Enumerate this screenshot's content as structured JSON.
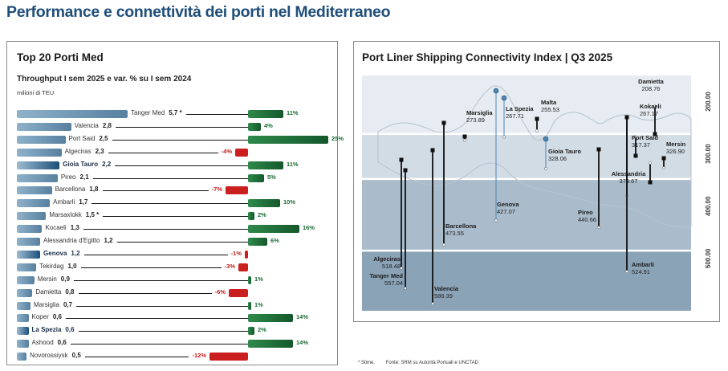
{
  "page": {
    "title": "Performance e connettività dei porti nel Mediterraneo",
    "footnote_star": "* Stime.",
    "source": "Fonte: SRM su Autorità Portuali e UNCTAD"
  },
  "left": {
    "title": "Top 20 Porti Med",
    "subtitle": "Throughput I sem 2025 e var. % su I sem 2024",
    "unit": "milioni di TEU"
  },
  "right": {
    "title": "Port Liner Shipping Connectivity Index | Q3 2025"
  },
  "chart_data": [
    {
      "type": "bar",
      "title": "Top 20 Porti Med",
      "subtitle": "Throughput I sem 2025 e var. % su I sem 2024",
      "unit": "milioni di TEU",
      "series": [
        {
          "name": "Throughput I sem 2025 (milioni di TEU)"
        },
        {
          "name": "Var. % su I sem 2024"
        }
      ],
      "rows": [
        {
          "port": "Tanger Med",
          "value": 5.7,
          "value_label": "5,7 *",
          "change": 11,
          "change_label": "11%",
          "highlight": false
        },
        {
          "port": "Valencia",
          "value": 2.8,
          "value_label": "2,8",
          "change": 4,
          "change_label": "4%",
          "highlight": false
        },
        {
          "port": "Port Said",
          "value": 2.5,
          "value_label": "2,5",
          "change": 25,
          "change_label": "25%",
          "highlight": false
        },
        {
          "port": "Algeciras",
          "value": 2.3,
          "value_label": "2,3",
          "change": -4,
          "change_label": "-4%",
          "highlight": false
        },
        {
          "port": "Gioia Tauro",
          "value": 2.2,
          "value_label": "2,2",
          "change": 11,
          "change_label": "11%",
          "highlight": true
        },
        {
          "port": "Pireo",
          "value": 2.1,
          "value_label": "2,1",
          "change": 5,
          "change_label": "5%",
          "highlight": false
        },
        {
          "port": "Barcellona",
          "value": 1.8,
          "value_label": "1,8",
          "change": -7,
          "change_label": "-7%",
          "highlight": false
        },
        {
          "port": "Ambarli",
          "value": 1.7,
          "value_label": "1,7",
          "change": 10,
          "change_label": "10%",
          "highlight": false
        },
        {
          "port": "Marsaxlokk",
          "value": 1.5,
          "value_label": "1,5 *",
          "change": 2,
          "change_label": "2%",
          "highlight": false
        },
        {
          "port": "Kocaeli",
          "value": 1.3,
          "value_label": "1,3",
          "change": 16,
          "change_label": "16%",
          "highlight": false
        },
        {
          "port": "Alessandria d'Egitto",
          "value": 1.2,
          "value_label": "1,2",
          "change": 6,
          "change_label": "6%",
          "highlight": false
        },
        {
          "port": "Genova",
          "value": 1.2,
          "value_label": "1,2",
          "change": -1,
          "change_label": "-1%",
          "highlight": true
        },
        {
          "port": "Tekirdag",
          "value": 1.0,
          "value_label": "1,0",
          "change": -3,
          "change_label": "-3%",
          "highlight": false
        },
        {
          "port": "Mersin",
          "value": 0.9,
          "value_label": "0,9",
          "change": 1,
          "change_label": "1%",
          "highlight": false
        },
        {
          "port": "Damietta",
          "value": 0.8,
          "value_label": "0,8",
          "change": -6,
          "change_label": "-6%",
          "highlight": false
        },
        {
          "port": "Marsiglia",
          "value": 0.7,
          "value_label": "0,7",
          "change": 1,
          "change_label": "1%",
          "highlight": false
        },
        {
          "port": "Koper",
          "value": 0.6,
          "value_label": "0,6",
          "change": 14,
          "change_label": "14%",
          "highlight": false
        },
        {
          "port": "La Spezia",
          "value": 0.6,
          "value_label": "0,6",
          "change": 2,
          "change_label": "2%",
          "highlight": true
        },
        {
          "port": "Ashood",
          "value": 0.6,
          "value_label": "0,6",
          "change": 14,
          "change_label": "14%",
          "highlight": false
        },
        {
          "port": "Novorossiysk",
          "value": 0.5,
          "value_label": "0,5",
          "change": -12,
          "change_label": "-12%",
          "highlight": false
        }
      ]
    },
    {
      "type": "scatter",
      "title": "Port Liner Shipping Connectivity Index | Q3 2025",
      "ylabel": "",
      "ylim": [
        150,
        600
      ],
      "y_inverted": true,
      "yticks": [
        200,
        300,
        400,
        500
      ],
      "ytick_labels": [
        "200.00",
        "300.00",
        "400.00",
        "500.00"
      ],
      "points": [
        {
          "name": "Damietta",
          "value": 208.76,
          "label": "208.76",
          "highlight": false
        },
        {
          "name": "Kokaeli",
          "value": 267.17,
          "label": "267.17",
          "highlight": false
        },
        {
          "name": "Marsiglia",
          "value": 273.89,
          "label": "273.89",
          "highlight": false
        },
        {
          "name": "La Spezia",
          "value": 267.71,
          "label": "267.71",
          "highlight": true
        },
        {
          "name": "Malta",
          "value": 255.53,
          "label": "255.53",
          "highlight": false
        },
        {
          "name": "Port Said",
          "value": 317.37,
          "label": "317.37",
          "highlight": false
        },
        {
          "name": "Mersin",
          "value": 326.9,
          "label": "326.90",
          "highlight": false
        },
        {
          "name": "Gioia Tauro",
          "value": 328.06,
          "label": "328.06",
          "highlight": true
        },
        {
          "name": "Alessandria",
          "value": 379.67,
          "label": "379.67",
          "highlight": false
        },
        {
          "name": "Genova",
          "value": 427.07,
          "label": "427.07",
          "highlight": true
        },
        {
          "name": "Pireo",
          "value": 440.66,
          "label": "440.66",
          "highlight": false
        },
        {
          "name": "Barcellona",
          "value": 473.55,
          "label": "473.55",
          "highlight": false
        },
        {
          "name": "Algeciras",
          "value": 518.48,
          "label": "518.48",
          "highlight": false
        },
        {
          "name": "Tanger Med",
          "value": 557.04,
          "label": "557.04",
          "highlight": false
        },
        {
          "name": "Ambarli",
          "value": 524.91,
          "label": "524.91",
          "highlight": false
        },
        {
          "name": "Valencia",
          "value": 586.39,
          "label": "586.39",
          "highlight": false
        }
      ],
      "colors": {
        "band_light": "#e6ecf1",
        "band_mid": "#d1dce5",
        "band_deep": "#aabccb",
        "band_deepest": "#8ba3b7",
        "highlight_point": "#4f86b3",
        "stem": "#111111"
      }
    }
  ]
}
